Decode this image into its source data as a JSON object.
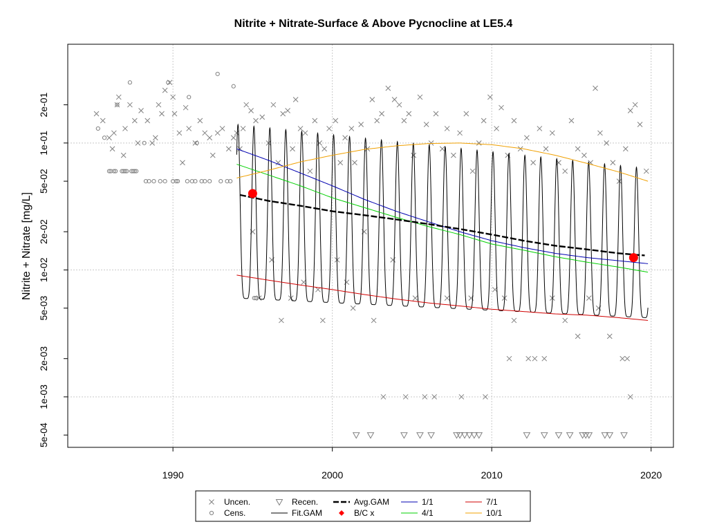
{
  "chart_data": {
    "type": "scatter",
    "title": "Nitrite + Nitrate-Surface & Above Pycnocline at LE5.4",
    "xlabel": "",
    "ylabel": "Nitrite + Nitrate [mg/L]",
    "xlim": [
      1983.4,
      2021.4
    ],
    "ylim": [
      0.0004,
      0.6
    ],
    "yscale": "log",
    "grid": true,
    "x_ticks": [
      1990,
      2000,
      2010,
      2020
    ],
    "x_tick_labels": [
      "1990",
      "2000",
      "2010",
      "2020"
    ],
    "y_ticks": [
      0.0005,
      0.001,
      0.002,
      0.005,
      0.01,
      0.02,
      0.05,
      0.1,
      0.2
    ],
    "y_tick_labels": [
      "5e-04",
      "1e-03",
      "2e-03",
      "5e-03",
      "1e-02",
      "2e-02",
      "5e-02",
      "1e-01",
      "2e-01"
    ],
    "legend_position": "bottom",
    "legend": [
      {
        "label": "Uncen.",
        "marker": "x",
        "color": "#808080"
      },
      {
        "label": "Cens.",
        "marker": "circle",
        "color": "#808080"
      },
      {
        "label": "Recen.",
        "marker": "triangle-down",
        "color": "#808080"
      },
      {
        "label": "Fit.GAM",
        "marker": "line",
        "color": "#000000"
      },
      {
        "label": "Avg.GAM",
        "marker": "dashed-line",
        "color": "#000000"
      },
      {
        "label": "B/C x",
        "marker": "diamond",
        "color": "#ff0000"
      },
      {
        "label": "1/1",
        "marker": "line",
        "color": "#0000b0"
      },
      {
        "label": "4/1",
        "marker": "line",
        "color": "#00d000"
      },
      {
        "label": "7/1",
        "marker": "line",
        "color": "#d00000"
      },
      {
        "label": "10/1",
        "marker": "line",
        "color": "#f0a000"
      }
    ],
    "series": [
      {
        "name": "Uncen.",
        "type": "scatter",
        "marker": "x",
        "color": "#808080",
        "points": [
          [
            1985.2,
            0.17
          ],
          [
            1985.6,
            0.15
          ],
          [
            1986.0,
            0.11
          ],
          [
            1986.2,
            0.09
          ],
          [
            1986.3,
            0.12
          ],
          [
            1986.5,
            0.2
          ],
          [
            1986.6,
            0.23
          ],
          [
            1986.9,
            0.08
          ],
          [
            1987.0,
            0.13
          ],
          [
            1987.3,
            0.2
          ],
          [
            1987.6,
            0.15
          ],
          [
            1987.8,
            0.1
          ],
          [
            1988.0,
            0.18
          ],
          [
            1988.4,
            0.15
          ],
          [
            1988.7,
            0.1
          ],
          [
            1988.9,
            0.11
          ],
          [
            1989.1,
            0.2
          ],
          [
            1989.3,
            0.17
          ],
          [
            1989.5,
            0.26
          ],
          [
            1989.8,
            0.3
          ],
          [
            1990.0,
            0.23
          ],
          [
            1990.1,
            0.17
          ],
          [
            1990.4,
            0.12
          ],
          [
            1990.6,
            0.07
          ],
          [
            1990.8,
            0.19
          ],
          [
            1991.0,
            0.13
          ],
          [
            1991.4,
            0.1
          ],
          [
            1991.7,
            0.15
          ],
          [
            1992.0,
            0.12
          ],
          [
            1992.3,
            0.11
          ],
          [
            1992.5,
            0.08
          ],
          [
            1992.8,
            0.12
          ],
          [
            1993.1,
            0.13
          ],
          [
            1993.5,
            0.09
          ],
          [
            1993.8,
            0.11
          ],
          [
            1994.0,
            0.12
          ],
          [
            1994.2,
            0.09
          ],
          [
            1994.4,
            0.13
          ],
          [
            1994.6,
            0.2
          ],
          [
            1994.9,
            0.18
          ],
          [
            1995.2,
            0.15
          ],
          [
            1995.6,
            0.16
          ],
          [
            1996.0,
            0.1
          ],
          [
            1996.3,
            0.2
          ],
          [
            1996.6,
            0.07
          ],
          [
            1996.9,
            0.17
          ],
          [
            1997.2,
            0.18
          ],
          [
            1997.5,
            0.09
          ],
          [
            1997.7,
            0.22
          ],
          [
            1998.0,
            0.13
          ],
          [
            1998.3,
            0.12
          ],
          [
            1998.6,
            0.06
          ],
          [
            1998.9,
            0.15
          ],
          [
            1999.2,
            0.1
          ],
          [
            1999.5,
            0.09
          ],
          [
            1999.8,
            0.13
          ],
          [
            2000.2,
            0.15
          ],
          [
            2000.5,
            0.07
          ],
          [
            2000.8,
            0.11
          ],
          [
            2001.2,
            0.13
          ],
          [
            2001.4,
            0.07
          ],
          [
            2001.8,
            0.14
          ],
          [
            2002.2,
            0.09
          ],
          [
            2002.5,
            0.22
          ],
          [
            2002.8,
            0.15
          ],
          [
            2003.1,
            0.17
          ],
          [
            2003.5,
            0.27
          ],
          [
            2003.9,
            0.22
          ],
          [
            2004.2,
            0.2
          ],
          [
            2004.5,
            0.15
          ],
          [
            2004.8,
            0.17
          ],
          [
            2005.1,
            0.08
          ],
          [
            2005.5,
            0.23
          ],
          [
            2005.9,
            0.14
          ],
          [
            2006.2,
            0.1
          ],
          [
            2006.5,
            0.17
          ],
          [
            2006.9,
            0.09
          ],
          [
            2007.2,
            0.13
          ],
          [
            2007.6,
            0.08
          ],
          [
            2008.0,
            0.12
          ],
          [
            2008.4,
            0.17
          ],
          [
            2008.8,
            0.06
          ],
          [
            2009.2,
            0.1
          ],
          [
            2009.5,
            0.15
          ],
          [
            2009.9,
            0.23
          ],
          [
            2010.3,
            0.13
          ],
          [
            2010.6,
            0.19
          ],
          [
            2011.0,
            0.08
          ],
          [
            2011.4,
            0.15
          ],
          [
            2011.8,
            0.09
          ],
          [
            2012.2,
            0.11
          ],
          [
            2012.6,
            0.07
          ],
          [
            2013.0,
            0.13
          ],
          [
            2013.4,
            0.09
          ],
          [
            2013.8,
            0.12
          ],
          [
            2014.2,
            0.07
          ],
          [
            2014.6,
            0.06
          ],
          [
            2015.0,
            0.15
          ],
          [
            2015.4,
            0.09
          ],
          [
            2015.8,
            0.08
          ],
          [
            2016.2,
            0.07
          ],
          [
            2016.5,
            0.27
          ],
          [
            2016.8,
            0.12
          ],
          [
            2017.2,
            0.1
          ],
          [
            2017.6,
            0.07
          ],
          [
            2018.0,
            0.05
          ],
          [
            2018.4,
            0.09
          ],
          [
            2018.7,
            0.18
          ],
          [
            2019.0,
            0.2
          ],
          [
            2019.3,
            0.14
          ],
          [
            2019.7,
            0.06
          ],
          [
            1995.0,
            0.02
          ],
          [
            1995.4,
            0.006
          ],
          [
            1996.2,
            0.012
          ],
          [
            1996.8,
            0.004
          ],
          [
            1997.4,
            0.006
          ],
          [
            1998.2,
            0.008
          ],
          [
            1999.1,
            0.007
          ],
          [
            1999.4,
            0.004
          ],
          [
            2000.3,
            0.012
          ],
          [
            2000.9,
            0.008
          ],
          [
            2001.3,
            0.005
          ],
          [
            2002.0,
            0.02
          ],
          [
            2002.6,
            0.004
          ],
          [
            2003.2,
            0.001
          ],
          [
            2003.8,
            0.012
          ],
          [
            2004.6,
            0.001
          ],
          [
            2005.2,
            0.006
          ],
          [
            2005.8,
            0.001
          ],
          [
            2006.4,
            0.001
          ],
          [
            2007.2,
            0.006
          ],
          [
            2008.1,
            0.001
          ],
          [
            2008.7,
            0.006
          ],
          [
            2009.6,
            0.001
          ],
          [
            2010.2,
            0.007
          ],
          [
            2010.8,
            0.006
          ],
          [
            2011.1,
            0.002
          ],
          [
            2011.4,
            0.004
          ],
          [
            2012.3,
            0.002
          ],
          [
            2012.7,
            0.002
          ],
          [
            2013.3,
            0.002
          ],
          [
            2013.8,
            0.006
          ],
          [
            2014.6,
            0.004
          ],
          [
            2015.4,
            0.003
          ],
          [
            2016.1,
            0.006
          ],
          [
            2016.7,
            0.005
          ],
          [
            2017.4,
            0.003
          ],
          [
            2018.2,
            0.002
          ],
          [
            2018.5,
            0.002
          ],
          [
            2018.7,
            0.001
          ]
        ]
      },
      {
        "name": "Cens.",
        "type": "scatter",
        "marker": "circle",
        "color": "#808080",
        "points": [
          [
            1985.3,
            0.13
          ],
          [
            1985.7,
            0.11
          ],
          [
            1986.0,
            0.06
          ],
          [
            1986.1,
            0.06
          ],
          [
            1986.3,
            0.06
          ],
          [
            1986.4,
            0.06
          ],
          [
            1986.8,
            0.06
          ],
          [
            1986.9,
            0.06
          ],
          [
            1987.0,
            0.06
          ],
          [
            1987.1,
            0.06
          ],
          [
            1987.4,
            0.06
          ],
          [
            1987.5,
            0.06
          ],
          [
            1987.6,
            0.06
          ],
          [
            1987.7,
            0.06
          ],
          [
            1988.3,
            0.05
          ],
          [
            1988.5,
            0.05
          ],
          [
            1988.8,
            0.05
          ],
          [
            1989.2,
            0.05
          ],
          [
            1989.5,
            0.05
          ],
          [
            1990.0,
            0.05
          ],
          [
            1990.2,
            0.05
          ],
          [
            1990.3,
            0.05
          ],
          [
            1990.9,
            0.05
          ],
          [
            1991.2,
            0.05
          ],
          [
            1991.4,
            0.05
          ],
          [
            1991.8,
            0.05
          ],
          [
            1992.0,
            0.05
          ],
          [
            1992.3,
            0.05
          ],
          [
            1993.0,
            0.05
          ],
          [
            1993.4,
            0.05
          ],
          [
            1993.6,
            0.05
          ],
          [
            1986.5,
            0.2
          ],
          [
            1987.3,
            0.3
          ],
          [
            1988.2,
            0.1
          ],
          [
            1989.7,
            0.3
          ],
          [
            1991.0,
            0.23
          ],
          [
            1991.5,
            0.1
          ],
          [
            1992.8,
            0.35
          ],
          [
            1993.8,
            0.28
          ],
          [
            1995.1,
            0.006
          ],
          [
            1995.2,
            0.006
          ]
        ]
      },
      {
        "name": "Recen.",
        "type": "scatter",
        "marker": "triangle-down",
        "color": "#808080",
        "points": [
          [
            2001.5,
            0.0005
          ],
          [
            2002.4,
            0.0005
          ],
          [
            2004.5,
            0.0005
          ],
          [
            2005.5,
            0.0005
          ],
          [
            2006.2,
            0.0005
          ],
          [
            2007.8,
            0.0005
          ],
          [
            2008.0,
            0.0005
          ],
          [
            2008.3,
            0.0005
          ],
          [
            2008.6,
            0.0005
          ],
          [
            2008.9,
            0.0005
          ],
          [
            2009.2,
            0.0005
          ],
          [
            2012.2,
            0.0005
          ],
          [
            2013.3,
            0.0005
          ],
          [
            2014.2,
            0.0005
          ],
          [
            2014.9,
            0.0005
          ],
          [
            2015.7,
            0.0005
          ],
          [
            2015.9,
            0.0005
          ],
          [
            2016.1,
            0.0005
          ],
          [
            2017.1,
            0.0005
          ],
          [
            2017.4,
            0.0005
          ],
          [
            2018.3,
            0.0005
          ]
        ]
      },
      {
        "name": "Fit.GAM",
        "type": "line",
        "color": "#000000",
        "generator": "seasonal",
        "x_start": 1994.0,
        "x_end": 2019.8,
        "year_start": 1994,
        "year_end": 2019,
        "years": [
          1994,
          2019
        ],
        "peak_values": [
          0.14,
          0.063
        ],
        "trough_values": [
          0.006,
          0.0042
        ]
      },
      {
        "name": "Avg.GAM",
        "type": "dashed-line",
        "color": "#000000",
        "x": [
          1994.2,
          1996,
          1998,
          2000,
          2002,
          2004,
          2006,
          2008,
          2010,
          2012,
          2014,
          2016,
          2018,
          2019.6
        ],
        "y": [
          0.039,
          0.035,
          0.032,
          0.029,
          0.027,
          0.025,
          0.023,
          0.021,
          0.019,
          0.017,
          0.0155,
          0.0145,
          0.0135,
          0.013
        ]
      },
      {
        "name": "B/C x",
        "type": "scatter",
        "marker": "big-dot",
        "color": "#ff0000",
        "points": [
          [
            1995.0,
            0.04
          ],
          [
            2018.9,
            0.0125
          ]
        ]
      },
      {
        "name": "1/1",
        "type": "line",
        "color": "#0000b0",
        "x": [
          1994.0,
          1996,
          1998,
          2000,
          2002,
          2004,
          2006,
          2008,
          2010,
          2012,
          2014,
          2016,
          2018,
          2019.8
        ],
        "y": [
          0.09,
          0.073,
          0.058,
          0.046,
          0.036,
          0.029,
          0.024,
          0.02,
          0.017,
          0.015,
          0.0135,
          0.0125,
          0.0118,
          0.0112
        ]
      },
      {
        "name": "4/1",
        "type": "line",
        "color": "#00d000",
        "x": [
          1994.0,
          1996,
          1998,
          2000,
          2002,
          2004,
          2006,
          2008,
          2010,
          2012,
          2014,
          2016,
          2018,
          2019.8
        ],
        "y": [
          0.068,
          0.056,
          0.046,
          0.037,
          0.031,
          0.026,
          0.022,
          0.019,
          0.016,
          0.0143,
          0.0127,
          0.0115,
          0.0105,
          0.0096
        ]
      },
      {
        "name": "7/1",
        "type": "line",
        "color": "#d00000",
        "x": [
          1994.0,
          1996,
          1998,
          2000,
          2002,
          2004,
          2006,
          2008,
          2010,
          2012,
          2014,
          2016,
          2018,
          2019.8
        ],
        "y": [
          0.0091,
          0.0083,
          0.0076,
          0.007,
          0.0064,
          0.0059,
          0.0055,
          0.0052,
          0.0049,
          0.0047,
          0.0045,
          0.0044,
          0.0042,
          0.004
        ]
      },
      {
        "name": "10/1",
        "type": "line",
        "color": "#f0a000",
        "x": [
          1994.0,
          1996,
          1998,
          2000,
          2002,
          2004,
          2006,
          2008,
          2010,
          2012,
          2014,
          2016,
          2018,
          2019.8
        ],
        "y": [
          0.053,
          0.061,
          0.071,
          0.08,
          0.089,
          0.095,
          0.099,
          0.1,
          0.097,
          0.09,
          0.08,
          0.069,
          0.059,
          0.05
        ]
      }
    ]
  }
}
